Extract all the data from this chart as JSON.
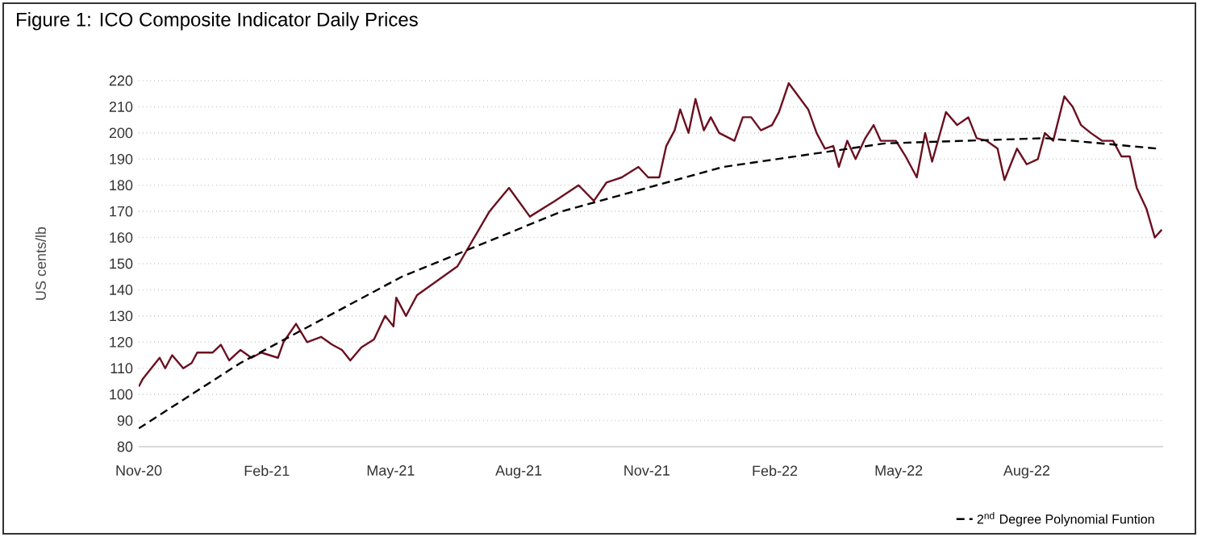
{
  "chart_data": {
    "type": "line",
    "title": "Figure 1: ICO Composite Indicator Daily Prices",
    "ylabel": "US cents/lb",
    "xlim": [
      "2020-11-01",
      "2022-11-07"
    ],
    "ylim": [
      80,
      220
    ],
    "xticks": [
      {
        "value": "2020-11-01",
        "label": "Nov-20"
      },
      {
        "value": "2021-02-01",
        "label": "Feb-21"
      },
      {
        "value": "2021-05-01",
        "label": "May-21"
      },
      {
        "value": "2021-08-01",
        "label": "Aug-21"
      },
      {
        "value": "2021-11-01",
        "label": "Nov-21"
      },
      {
        "value": "2022-02-01",
        "label": "Feb-22"
      },
      {
        "value": "2022-05-01",
        "label": "May-22"
      },
      {
        "value": "2022-08-01",
        "label": "Aug-22"
      }
    ],
    "yticks": [
      80,
      90,
      100,
      110,
      120,
      130,
      140,
      150,
      160,
      170,
      180,
      190,
      200,
      210,
      220
    ],
    "grid": "y",
    "legend": "bottom right",
    "marker": "none",
    "series": [
      {
        "color": "#6b1020",
        "line_style": "solid",
        "x": [
          "2020-11-01",
          "2020-11-04",
          "2020-11-10",
          "2020-11-16",
          "2020-11-20",
          "2020-11-25",
          "2020-12-03",
          "2020-12-09",
          "2020-12-13",
          "2020-12-24",
          "2020-12-30",
          "2021-01-05",
          "2021-01-13",
          "2021-01-21",
          "2021-01-28",
          "2021-02-09",
          "2021-02-13",
          "2021-02-22",
          "2021-03-02",
          "2021-03-12",
          "2021-03-20",
          "2021-03-27",
          "2021-04-02",
          "2021-04-10",
          "2021-04-19",
          "2021-04-27",
          "2021-05-03",
          "2021-05-05",
          "2021-05-12",
          "2021-05-20",
          "2021-06-18",
          "2021-07-11",
          "2021-07-25",
          "2021-08-09",
          "2021-08-27",
          "2021-09-13",
          "2021-09-24",
          "2021-10-03",
          "2021-10-14",
          "2021-10-26",
          "2021-11-02",
          "2021-11-10",
          "2021-11-15",
          "2021-11-21",
          "2021-11-25",
          "2021-12-01",
          "2021-12-06",
          "2021-12-12",
          "2021-12-17",
          "2021-12-23",
          "2022-01-03",
          "2022-01-09",
          "2022-01-15",
          "2022-01-22",
          "2022-01-30",
          "2022-02-04",
          "2022-02-11",
          "2022-02-18",
          "2022-02-25",
          "2022-03-03",
          "2022-03-09",
          "2022-03-15",
          "2022-03-19",
          "2022-03-25",
          "2022-03-31",
          "2022-04-07",
          "2022-04-13",
          "2022-04-18",
          "2022-04-29",
          "2022-05-06",
          "2022-05-14",
          "2022-05-20",
          "2022-05-25",
          "2022-06-04",
          "2022-06-12",
          "2022-06-20",
          "2022-06-26",
          "2022-07-03",
          "2022-07-11",
          "2022-07-16",
          "2022-07-25",
          "2022-08-01",
          "2022-08-09",
          "2022-08-14",
          "2022-08-20",
          "2022-08-28",
          "2022-09-03",
          "2022-09-09",
          "2022-09-16",
          "2022-09-24",
          "2022-10-02",
          "2022-10-08",
          "2022-10-14",
          "2022-10-19",
          "2022-10-26",
          "2022-11-01",
          "2022-11-06"
        ],
        "values": [
          103,
          106,
          110,
          114,
          110,
          115,
          110,
          112,
          116,
          116,
          119,
          113,
          117,
          114,
          116,
          114,
          120,
          127,
          120,
          122,
          119,
          117,
          113,
          118,
          121,
          130,
          126,
          137,
          130,
          138,
          149,
          170,
          179,
          168,
          174,
          180,
          174,
          181,
          183,
          187,
          183,
          183,
          195,
          201,
          209,
          200,
          213,
          201,
          206,
          200,
          197,
          206,
          206,
          201,
          203,
          208,
          219,
          214,
          209,
          200,
          194,
          195,
          187,
          197,
          190,
          198,
          203,
          197,
          197,
          191,
          183,
          200,
          189,
          208,
          203,
          206,
          198,
          197,
          194,
          182,
          194,
          188,
          190,
          200,
          197,
          214,
          210,
          203,
          200,
          197,
          197,
          191,
          191,
          179,
          171,
          160,
          163
        ]
      },
      {
        "name": "2$^{nd}$ Degree Polynomial Funtion",
        "color": "#000000",
        "line_style": "dashed",
        "x": [
          "2020-11-01",
          "2021-01-13",
          "2021-05-09",
          "2021-09-01",
          "2021-12-26",
          "2022-04-21",
          "2022-08-14",
          "2022-11-03"
        ],
        "values": [
          87,
          112,
          145,
          170,
          187,
          196,
          198,
          194
        ]
      }
    ]
  }
}
